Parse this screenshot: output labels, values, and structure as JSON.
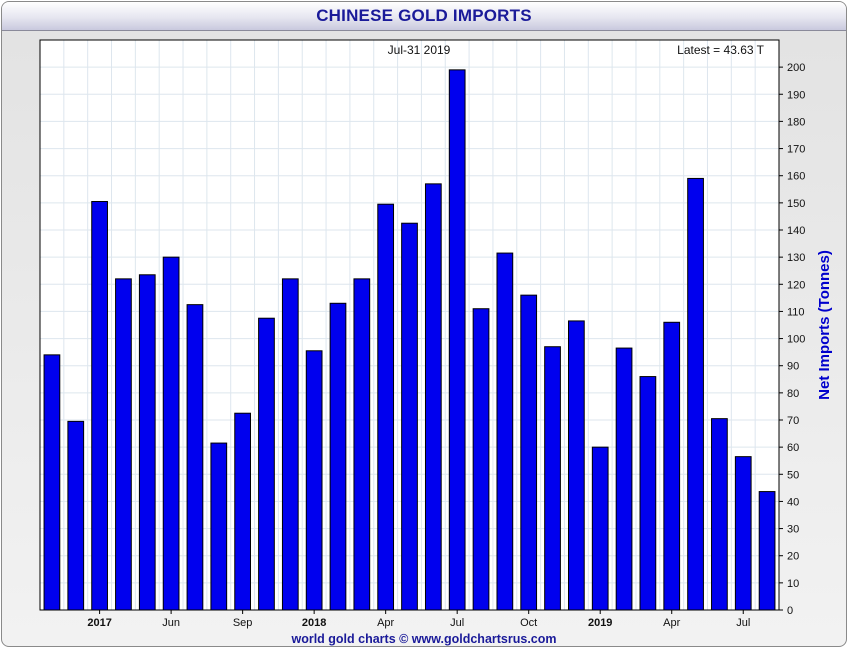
{
  "chart_data": {
    "type": "bar",
    "title": "CHINESE GOLD IMPORTS",
    "date_label": "Jul-31  2019",
    "latest_label": "Latest = 43.63 T",
    "ylabel": "Net Imports (Tonnes)",
    "footer": "world gold charts © www.goldchartsrus.com",
    "ylim": [
      0,
      210
    ],
    "yticks": [
      0,
      10,
      20,
      30,
      40,
      50,
      60,
      70,
      80,
      90,
      100,
      110,
      120,
      130,
      140,
      150,
      160,
      170,
      180,
      190,
      200
    ],
    "x_tick_labels": [
      {
        "index": 2,
        "label": "2017",
        "bold": true
      },
      {
        "index": 5,
        "label": "Jun",
        "bold": false
      },
      {
        "index": 8,
        "label": "Sep",
        "bold": false
      },
      {
        "index": 11,
        "label": "2018",
        "bold": true
      },
      {
        "index": 14,
        "label": "Apr",
        "bold": false
      },
      {
        "index": 17,
        "label": "Jul",
        "bold": false
      },
      {
        "index": 20,
        "label": "Oct",
        "bold": false
      },
      {
        "index": 23,
        "label": "2019",
        "bold": true
      },
      {
        "index": 26,
        "label": "Apr",
        "bold": false
      },
      {
        "index": 29,
        "label": "Jul",
        "bold": false
      }
    ],
    "values": [
      94,
      69.5,
      150.5,
      122,
      123.5,
      130,
      112.5,
      61.5,
      72.5,
      107.5,
      122,
      95.5,
      113,
      122,
      149.5,
      142.5,
      157,
      199,
      111,
      131.5,
      116,
      97,
      106.5,
      60,
      96.5,
      86,
      106,
      159,
      70.5,
      56.5,
      43.63
    ],
    "colors": {
      "bar_fill": "#0000ee",
      "bar_stroke": "#000000",
      "title": "#1a1a99",
      "ylabel": "#0000cc",
      "grid": "#dde6ee"
    },
    "grid": true
  }
}
